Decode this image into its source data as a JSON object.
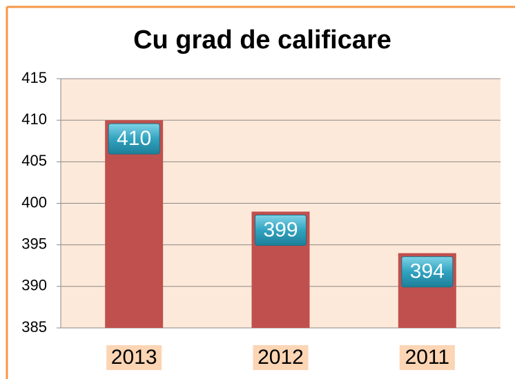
{
  "chart_data": {
    "type": "bar",
    "title": "Cu grad de calificare",
    "categories": [
      "2013",
      "2012",
      "2011"
    ],
    "values": [
      410,
      399,
      394
    ],
    "color": "#c0504d",
    "ylim": [
      385,
      415
    ],
    "yticks": [
      385,
      390,
      395,
      400,
      405,
      410,
      415
    ],
    "grid": true
  }
}
